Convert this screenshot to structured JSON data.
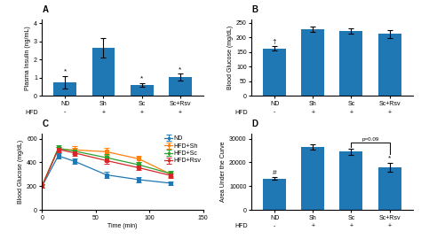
{
  "chart_data": [
    {
      "type": "bar",
      "title": "A",
      "categories": [
        "ND",
        "Sh",
        "Sc",
        "Sc+Rsv"
      ],
      "values": [
        0.75,
        2.65,
        0.6,
        1.02
      ],
      "errors": [
        0.35,
        0.55,
        0.1,
        0.2
      ],
      "ylabel": "Plasma Insulin (ng/mL)",
      "ylim": [
        0,
        4.2
      ],
      "yticks": [
        0,
        1,
        2,
        3,
        4
      ],
      "row_title": "HFD",
      "row_labels": [
        "-",
        "+",
        "+",
        "+"
      ],
      "annotations": [
        {
          "text": "*",
          "category": "ND"
        },
        {
          "text": "*",
          "category": "Sc"
        },
        {
          "text": "*",
          "category": "Sc+Rsv"
        }
      ]
    },
    {
      "type": "bar",
      "title": "B",
      "categories": [
        "ND",
        "Sh",
        "Sc",
        "Sc+Rsv"
      ],
      "values": [
        162,
        228,
        222,
        212
      ],
      "errors": [
        8,
        10,
        10,
        14
      ],
      "ylabel": "Blood Glucose (mg/dL)",
      "ylim": [
        0,
        260
      ],
      "yticks": [
        0,
        50,
        100,
        150,
        200,
        250
      ],
      "row_title": "HFD",
      "row_labels": [
        "-",
        "+",
        "+",
        "+"
      ],
      "annotations": [
        {
          "text": "†",
          "category": "ND"
        }
      ]
    },
    {
      "type": "line",
      "title": "C",
      "xlabel": "Time (min)",
      "ylabel": "Blood Glucose (mg/dL)",
      "x": [
        0,
        15,
        30,
        60,
        90,
        120
      ],
      "xlim": [
        0,
        150
      ],
      "xticks": [
        0,
        50,
        100,
        150
      ],
      "ylim": [
        0,
        640
      ],
      "yticks": [
        0,
        200,
        400,
        600
      ],
      "legend": "upper right",
      "series": [
        {
          "name": "ND",
          "values": [
            200,
            455,
            410,
            295,
            255,
            225
          ],
          "errors": [
            15,
            25,
            20,
            25,
            20,
            18
          ],
          "marker": "s"
        },
        {
          "name": "HFD+Sh",
          "values": [
            205,
            510,
            505,
            490,
            430,
            300
          ],
          "errors": [
            15,
            20,
            30,
            30,
            25,
            25
          ],
          "marker": "s"
        },
        {
          "name": "HFD+Sc",
          "values": [
            200,
            520,
            495,
            440,
            380,
            305
          ],
          "errors": [
            12,
            25,
            25,
            28,
            22,
            22
          ],
          "marker": "s"
        },
        {
          "name": "HFD+Rsv",
          "values": [
            205,
            510,
            480,
            415,
            355,
            290
          ],
          "errors": [
            15,
            22,
            28,
            30,
            20,
            20
          ],
          "marker": "s"
        }
      ]
    },
    {
      "type": "bar",
      "title": "D",
      "categories": [
        "ND",
        "Sh",
        "Sc",
        "Sc+Rsv"
      ],
      "values": [
        13200,
        26500,
        24500,
        18000
      ],
      "errors": [
        600,
        1000,
        1200,
        1800
      ],
      "ylabel": "Area Under the Curve",
      "ylim": [
        0,
        32000
      ],
      "yticks": [
        0,
        10000,
        20000,
        30000
      ],
      "row_title": "HFD",
      "row_labels": [
        "-",
        "+",
        "+",
        "+"
      ],
      "annotations": [
        {
          "text": "#",
          "category": "ND"
        },
        {
          "text": "*",
          "category": "Sc+Rsv"
        }
      ],
      "brackets": [
        {
          "text": "p=0.09",
          "from": "Sc",
          "to": "Sc+Rsv"
        }
      ]
    }
  ]
}
